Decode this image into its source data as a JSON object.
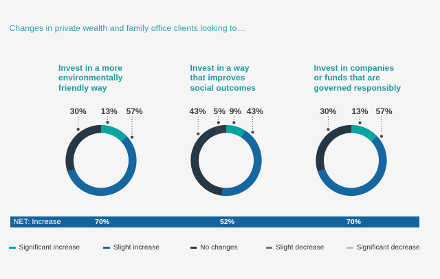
{
  "title": "Changes in private wealth and family office clients looking to…",
  "net_row_label": "NET: Increase",
  "colors": {
    "background": "#f5f5f6",
    "title_teal": "#2aa4ac",
    "heading_teal": "#1b98a2",
    "net_bar_blue": "#15639c",
    "significant_increase": "#0ba3a0",
    "slight_increase": "#16679f",
    "no_changes": "#273744",
    "slight_decrease": "#70747a",
    "significant_decrease": "#b8babd"
  },
  "legend": [
    {
      "label": "Significant increase",
      "color": "#0ba3a0"
    },
    {
      "label": "Slight increase",
      "color": "#16679f"
    },
    {
      "label": "No changes",
      "color": "#273744"
    },
    {
      "label": "Slight decrease",
      "color": "#70747a"
    },
    {
      "label": "Significant decrease",
      "color": "#b8babd"
    }
  ],
  "chart_data": {
    "type": "donut",
    "title": "Changes in private wealth and family office clients looking to…",
    "legend_position": "bottom",
    "legend": [
      "Significant increase",
      "Slight increase",
      "No changes",
      "Slight decrease",
      "Significant decrease"
    ],
    "charts": [
      {
        "title": "Invest in a more environmentally friendly way",
        "title_lines": [
          "Invest in a more",
          "environmentally",
          "friendly way"
        ],
        "net_increase": "70%",
        "slices": [
          {
            "name": "Significant increase",
            "label": "13%",
            "value": 13,
            "color": "#0ba3a0"
          },
          {
            "name": "Slight increase",
            "label": "57%",
            "value": 57,
            "color": "#16679f"
          },
          {
            "name": "No changes",
            "label": "30%",
            "value": 30,
            "color": "#273744"
          }
        ]
      },
      {
        "title": "Invest in a way that improves social outcomes",
        "title_lines": [
          "Invest in a way",
          "that improves",
          "social outcomes"
        ],
        "net_increase": "52%",
        "slices": [
          {
            "name": "Significant increase",
            "label": "9%",
            "value": 9,
            "color": "#0ba3a0"
          },
          {
            "name": "Slight increase",
            "label": "43%",
            "value": 43,
            "color": "#16679f"
          },
          {
            "name": "No changes",
            "label": "43%",
            "value": 43,
            "color": "#273744"
          },
          {
            "name": "Slight decrease",
            "label": "5%",
            "value": 5,
            "color": "#313d48"
          }
        ]
      },
      {
        "title": "Invest in companies or funds that are governed responsibly",
        "title_lines": [
          "Invest in companies",
          "or funds that are",
          "governed responsibly"
        ],
        "net_increase": "70%",
        "slices": [
          {
            "name": "Significant increase",
            "label": "13%",
            "value": 13,
            "color": "#0ba3a0"
          },
          {
            "name": "Slight increase",
            "label": "57%",
            "value": 57,
            "color": "#16679f"
          },
          {
            "name": "No changes",
            "label": "30%",
            "value": 30,
            "color": "#273744"
          }
        ]
      }
    ]
  }
}
